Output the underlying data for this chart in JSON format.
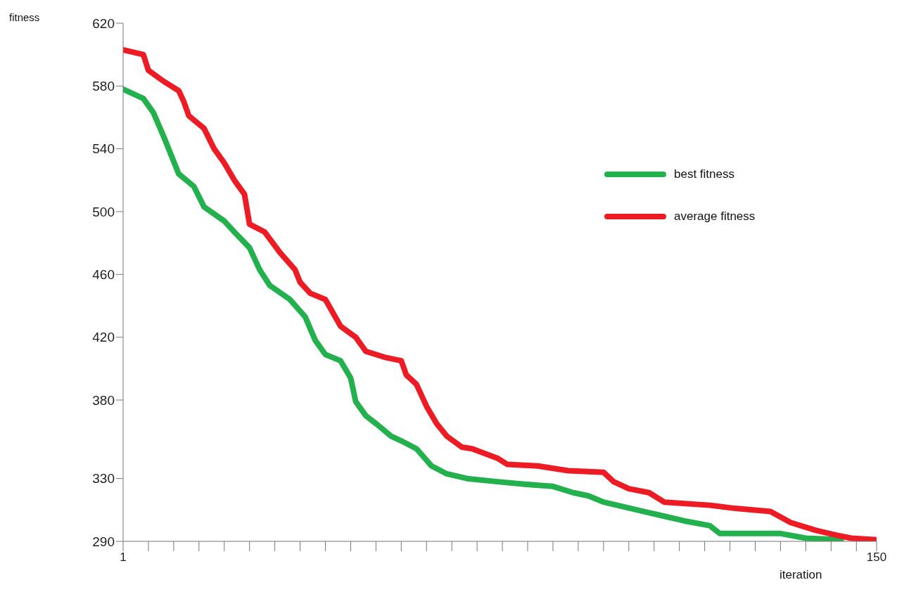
{
  "chart_data": {
    "type": "line",
    "xlabel": "iteration",
    "ylabel": "fitness",
    "xlim": [
      1,
      150
    ],
    "ylim": [
      290,
      620
    ],
    "xticks": [
      1,
      {
        "value": 6,
        "label": null
      },
      {
        "value": 11,
        "label": null
      },
      {
        "value": 16,
        "label": null
      },
      {
        "value": 21,
        "label": null
      },
      {
        "value": 26,
        "label": null
      },
      {
        "value": 31,
        "label": null
      },
      {
        "value": 36,
        "label": null
      },
      {
        "value": 41,
        "label": null
      },
      {
        "value": 46,
        "label": null
      },
      {
        "value": 51,
        "label": null
      },
      {
        "value": 56,
        "label": null
      },
      {
        "value": 61,
        "label": null
      },
      {
        "value": 66,
        "label": null
      },
      {
        "value": 71,
        "label": null
      },
      {
        "value": 76,
        "label": null
      },
      {
        "value": 81,
        "label": null
      },
      {
        "value": 86,
        "label": null
      },
      {
        "value": 91,
        "label": null
      },
      {
        "value": 96,
        "label": null
      },
      {
        "value": 101,
        "label": null
      },
      {
        "value": 106,
        "label": null
      },
      {
        "value": 111,
        "label": null
      },
      {
        "value": 116,
        "label": null
      },
      {
        "value": 121,
        "label": null
      },
      {
        "value": 126,
        "label": null
      },
      {
        "value": 131,
        "label": null
      },
      {
        "value": 136,
        "label": null
      },
      {
        "value": 141,
        "label": null
      },
      {
        "value": 146,
        "label": null
      },
      150
    ],
    "yticks": [
      290,
      330,
      380,
      420,
      460,
      500,
      540,
      580,
      620
    ],
    "grid": false,
    "legend": "right",
    "marker": "none",
    "line_style": "solid",
    "series": [
      {
        "name": "best fitness",
        "color": "#22b14c",
        "x": [
          1,
          5,
          7,
          9,
          12,
          15,
          17,
          21,
          23,
          26,
          28,
          30,
          34,
          37,
          39,
          41,
          44,
          46,
          47,
          49,
          51,
          54,
          56,
          59,
          62,
          65,
          69,
          75,
          80,
          86,
          90,
          93,
          96,
          100,
          104,
          108,
          112,
          117,
          119,
          131,
          136,
          143
        ],
        "values": [
          578,
          572,
          563,
          548,
          524,
          516,
          503,
          494,
          487,
          477,
          463,
          453,
          444,
          433,
          418,
          409,
          405,
          394,
          379,
          370,
          365,
          357,
          354,
          349,
          338,
          333,
          330,
          328,
          326.5,
          325,
          321,
          319,
          315,
          312,
          309,
          306,
          303,
          300,
          295,
          295,
          292,
          291
        ]
      },
      {
        "name": "average fitness",
        "color": "#ed1c24",
        "x": [
          1,
          5,
          6,
          9,
          12,
          13,
          14,
          17,
          19,
          21,
          23,
          25,
          26,
          29,
          32,
          35,
          36,
          38,
          41,
          44,
          47,
          49,
          53,
          56,
          57,
          59,
          61,
          63,
          65,
          68,
          70,
          75,
          77,
          83,
          89,
          96,
          98,
          101,
          105,
          108,
          117,
          122,
          129,
          133,
          138,
          142,
          145,
          150
        ],
        "values": [
          603,
          600,
          590,
          583,
          577,
          570,
          561,
          553,
          540,
          531,
          520,
          511,
          492,
          487,
          474,
          463,
          455,
          448,
          444,
          427,
          420,
          411,
          407,
          405,
          396,
          390,
          376,
          365,
          357,
          350,
          349,
          343,
          339,
          338,
          335,
          334,
          328,
          323.5,
          321,
          315,
          313,
          311,
          309,
          302,
          297,
          294,
          292,
          291
        ]
      }
    ]
  }
}
